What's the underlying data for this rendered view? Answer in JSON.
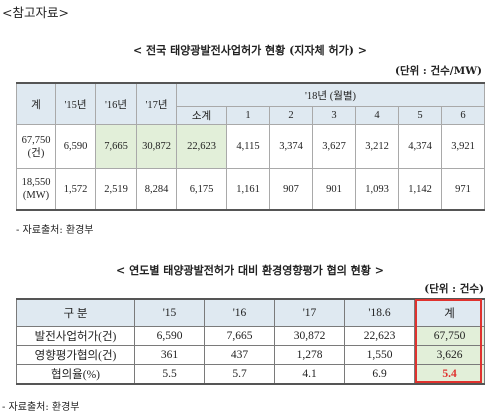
{
  "header": {
    "ref": "<참고자료>"
  },
  "section1": {
    "title": "< 전국 태양광발전사업허가 현황 (지자체 허가) >",
    "unit": "(단위 : 건수/MW)",
    "header": {
      "total": "계",
      "y15": "'15년",
      "y16": "'16년",
      "y17": "'17년",
      "y18": "'18년 (월별)",
      "sub": "소계",
      "months": [
        "1",
        "2",
        "3",
        "4",
        "5",
        "6"
      ]
    },
    "rows": [
      {
        "total": "67,750\n(건)",
        "y15": "6,590",
        "y16": "7,665",
        "y17": "30,872",
        "sub": "22,623",
        "months": [
          "4,115",
          "3,374",
          "3,627",
          "3,212",
          "4,374",
          "3,921"
        ]
      },
      {
        "total": "18,550\n(MW)",
        "y15": "1,572",
        "y16": "2,519",
        "y17": "8,284",
        "sub": "6,175",
        "months": [
          "1,161",
          "907",
          "901",
          "1,093",
          "1,142",
          "971"
        ]
      }
    ],
    "source": "- 자료출처: 환경부"
  },
  "section2": {
    "title": "< 연도별 태양광발전허가 대비 환경영향평가 협의 현황 >",
    "unit": "(단위 : 건수)",
    "headers": [
      "구   분",
      "'15",
      "'16",
      "'17",
      "'18.6",
      "계"
    ],
    "rows": [
      {
        "label": "발전사업허가(건)",
        "values": [
          "6,590",
          "7,665",
          "30,872",
          "22,623",
          "67,750"
        ]
      },
      {
        "label": "영향평가협의(건)",
        "values": [
          "361",
          "437",
          "1,278",
          "1,550",
          "3,626"
        ]
      },
      {
        "label": "협의율(%)",
        "values": [
          "5.5",
          "5.7",
          "4.1",
          "6.9",
          "5.4"
        ]
      }
    ],
    "source": "- 자료출처: 환경부"
  },
  "colors": {
    "header_bg": "#dfe9f1",
    "highlight_bg": "#e2efd9",
    "accent_red": "#e0322e"
  }
}
